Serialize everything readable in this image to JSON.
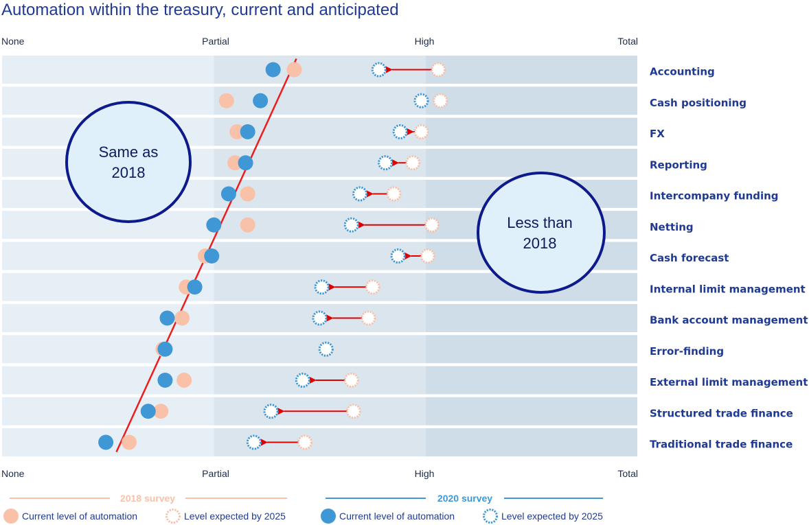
{
  "chart_data": {
    "type": "scatter",
    "title": "Automation within the treasury, current and anticipated",
    "x_scale": [
      "None",
      "Partial",
      "High",
      "Total"
    ],
    "xlim": [
      0,
      3
    ],
    "categories": [
      "Accounting",
      "Cash positioning",
      "FX",
      "Reporting",
      "Intercompany funding",
      "Netting",
      "Cash forecast",
      "Internal limit management",
      "Bank account management",
      "Error-finding",
      "External limit management",
      "Structured trade finance",
      "Traditional trade finance"
    ],
    "series": [
      {
        "name": "2018 survey – Current level of automation",
        "values": [
          1.38,
          1.06,
          1.11,
          1.1,
          1.16,
          1.16,
          0.96,
          0.87,
          0.85,
          0.76,
          0.86,
          0.75,
          0.6
        ]
      },
      {
        "name": "2018 survey – Level expected by 2025",
        "values": [
          2.06,
          2.07,
          1.98,
          1.94,
          1.85,
          2.03,
          2.01,
          1.75,
          1.73,
          1.53,
          1.65,
          1.66,
          1.43
        ]
      },
      {
        "name": "2020 survey – Current level of automation",
        "values": [
          1.28,
          1.22,
          1.16,
          1.15,
          1.07,
          1.0,
          0.99,
          0.91,
          0.78,
          0.77,
          0.77,
          0.69,
          0.49
        ]
      },
      {
        "name": "2020 survey – Level expected by 2025",
        "values": [
          1.78,
          1.98,
          1.88,
          1.81,
          1.69,
          1.65,
          1.87,
          1.51,
          1.5,
          1.53,
          1.42,
          1.27,
          1.19
        ]
      }
    ],
    "annotations": [
      "Same as 2018",
      "Less than 2018"
    ],
    "trend_line": {
      "from": [
        1.39,
        "Accounting"
      ],
      "to": [
        0.54,
        "Traditional trade finance"
      ]
    }
  },
  "labels": {
    "top_axis": [
      "None",
      "Partial",
      "High",
      "Total"
    ],
    "bottom_axis": [
      "None",
      "Partial",
      "High",
      "Total"
    ],
    "same_bubble": [
      "Same as",
      "2018"
    ],
    "less_bubble": [
      "Less than",
      "2018"
    ]
  },
  "legend": {
    "survey_2018": "2018 survey",
    "survey_2020": "2020 survey",
    "current": "Current level of automation",
    "expected": "Level expected by 2025"
  },
  "colors": {
    "peach": "#f8c1a8",
    "blue": "#3f97d6",
    "arrow": "#e00000",
    "trend": "#ee1c1c",
    "band1": "#e7eff6",
    "band2": "#dbe5ee",
    "band3": "#cfdde8",
    "title": "#1f3a93",
    "bubble_fill": "#dff0fb",
    "bubble_stroke": "#0d1a8c"
  }
}
